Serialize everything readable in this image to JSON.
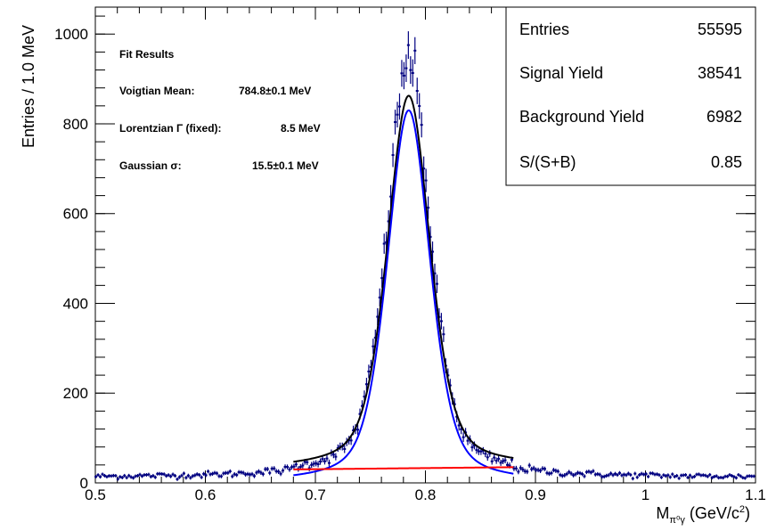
{
  "chart_data": {
    "type": "histogram-with-fit",
    "xlabel": {
      "main": "M",
      "sub": "π⁰γ",
      "unit_pre": " (GeV/c",
      "unit_sup": "2",
      "unit_post": ")"
    },
    "ylabel": "Entries / 1.0 MeV",
    "xlim": [
      0.5,
      1.1
    ],
    "ylim": [
      0,
      1060
    ],
    "x_ticks": [
      {
        "value": 0.5,
        "label": "0.5"
      },
      {
        "value": 0.6,
        "label": "0.6"
      },
      {
        "value": 0.7,
        "label": "0.7"
      },
      {
        "value": 0.8,
        "label": "0.8"
      },
      {
        "value": 0.9,
        "label": "0.9"
      },
      {
        "value": 1.0,
        "label": "1"
      },
      {
        "value": 1.1,
        "label": "1.1"
      }
    ],
    "y_ticks": [
      {
        "value": 0,
        "label": "0"
      },
      {
        "value": 200,
        "label": "200"
      },
      {
        "value": 400,
        "label": "400"
      },
      {
        "value": 600,
        "label": "600"
      },
      {
        "value": 800,
        "label": "800"
      },
      {
        "value": 1000,
        "label": "1000"
      }
    ],
    "bin_width": 0.001,
    "data_model": {
      "mean": 0.7848,
      "sigma": 0.0155,
      "gamma": 0.0085,
      "peak": 930,
      "background": 12
    },
    "total_fit": {
      "range": [
        0.68,
        0.88
      ],
      "mean": 0.7848,
      "sigma": 0.0155,
      "gamma": 0.0085,
      "peak": 830,
      "background": 30
    },
    "signal_fit": {
      "range": [
        0.68,
        0.88
      ],
      "mean": 0.7848,
      "sigma": 0.0155,
      "gamma": 0.0085,
      "peak": 830
    },
    "background_fit": {
      "range": [
        0.68,
        0.88
      ],
      "start": 30,
      "end": 35
    }
  },
  "fit_results": {
    "title": "Fit Results",
    "rows": [
      {
        "label": "Voigtian Mean:",
        "value": "784.8±0.1 MeV"
      },
      {
        "label": "Lorentzian Γ (fixed):",
        "value": "8.5 MeV"
      },
      {
        "label": "Gaussian σ:",
        "value": "15.5±0.1 MeV"
      }
    ]
  },
  "stats_box": [
    {
      "label": "Entries",
      "value": "55595"
    },
    {
      "label": "Signal Yield",
      "value": "38541"
    },
    {
      "label": "Background Yield",
      "value": "6982"
    },
    {
      "label": "S/(S+B)",
      "value": "0.85"
    }
  ],
  "colors": {
    "data": "#000080",
    "signal": "#0000ff",
    "total": "#000000",
    "background": "#ff0000",
    "frame": "#000000"
  }
}
